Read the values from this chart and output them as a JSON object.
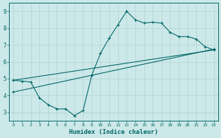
{
  "xlabel": "Humidex (Indice chaleur)",
  "ylabel": "",
  "bg_color": "#cce8e8",
  "line_color": "#006666",
  "grid_color": "#b8d8d8",
  "xlim": [
    -0.5,
    23.5
  ],
  "ylim": [
    2.5,
    9.5
  ],
  "xticks": [
    0,
    1,
    2,
    3,
    4,
    5,
    6,
    7,
    8,
    9,
    10,
    11,
    12,
    13,
    14,
    15,
    16,
    17,
    18,
    19,
    20,
    21,
    22,
    23
  ],
  "yticks": [
    3,
    4,
    5,
    6,
    7,
    8,
    9
  ],
  "line1_x": [
    0,
    1,
    2,
    3,
    4,
    5,
    6,
    7,
    8,
    9,
    10,
    11,
    12,
    13,
    14,
    15,
    16,
    17,
    18,
    19,
    20,
    21,
    22,
    23
  ],
  "line1_y": [
    4.9,
    4.85,
    4.8,
    3.85,
    3.45,
    3.2,
    3.2,
    2.8,
    3.1,
    5.2,
    6.5,
    7.4,
    8.2,
    9.0,
    8.5,
    8.3,
    8.35,
    8.3,
    7.75,
    7.5,
    7.5,
    7.35,
    6.9,
    6.7
  ],
  "line2_x": [
    0,
    23
  ],
  "line2_y": [
    4.9,
    6.7
  ],
  "line3_x": [
    0,
    23
  ],
  "line3_y": [
    4.2,
    6.75
  ],
  "xlabel_fontsize": 6.5,
  "tick_fontsize_x": 4.5,
  "tick_fontsize_y": 5.5
}
